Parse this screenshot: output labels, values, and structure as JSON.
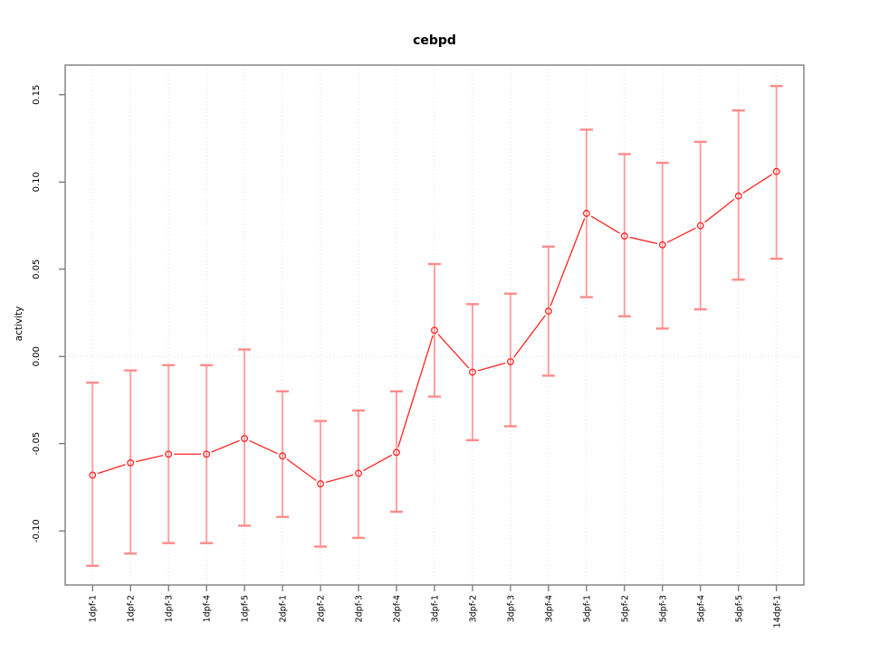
{
  "chart_data": {
    "type": "line",
    "title": "cebpd",
    "xlabel": "",
    "ylabel": "activity",
    "marker": "open-circle",
    "error_bars": true,
    "legend_position": "none",
    "grid": "dotted vertical gridline at each category; dotted horizontal gridline at y=0",
    "categories": [
      "1dpf-1",
      "1dpf-2",
      "1dpf-3",
      "1dpf-4",
      "1dpf-5",
      "2dpf-1",
      "2dpf-2",
      "2dpf-3",
      "2dpf-4",
      "3dpf-1",
      "3dpf-2",
      "3dpf-3",
      "3dpf-4",
      "5dpf-1",
      "5dpf-2",
      "5dpf-3",
      "5dpf-4",
      "5dpf-5",
      "14dpf-1"
    ],
    "series": [
      {
        "name": "activity",
        "values": [
          -0.068,
          -0.061,
          -0.056,
          -0.056,
          -0.047,
          -0.057,
          -0.073,
          -0.067,
          -0.055,
          0.015,
          -0.009,
          -0.003,
          0.026,
          0.082,
          0.069,
          0.064,
          0.075,
          0.092,
          0.106
        ],
        "ci_low": [
          -0.12,
          -0.113,
          -0.107,
          -0.107,
          -0.097,
          -0.092,
          -0.109,
          -0.104,
          -0.089,
          -0.023,
          -0.048,
          -0.04,
          -0.011,
          0.034,
          0.023,
          0.016,
          0.027,
          0.044,
          0.056
        ],
        "ci_high": [
          -0.015,
          -0.008,
          -0.005,
          -0.005,
          0.004,
          -0.02,
          -0.037,
          -0.031,
          -0.02,
          0.053,
          0.03,
          0.036,
          0.063,
          0.13,
          0.116,
          0.111,
          0.123,
          0.141,
          0.155
        ]
      }
    ],
    "yticks": [
      -0.1,
      -0.05,
      0.0,
      0.05,
      0.1,
      0.15
    ],
    "ytick_labels": [
      "-0.10",
      "-0.05",
      "0.00",
      "0.05",
      "0.10",
      "0.15"
    ],
    "ylim": [
      -0.131,
      0.167
    ],
    "colors": {
      "line": "#ff2424",
      "marker": "#ff2424",
      "error_bar": "#ffa2a2",
      "error_bar_cap": "#ff8b8b",
      "gridline": "#dcdcdc",
      "box": "#7c7c7c",
      "text": "#000000",
      "background": "#ffffff"
    }
  }
}
